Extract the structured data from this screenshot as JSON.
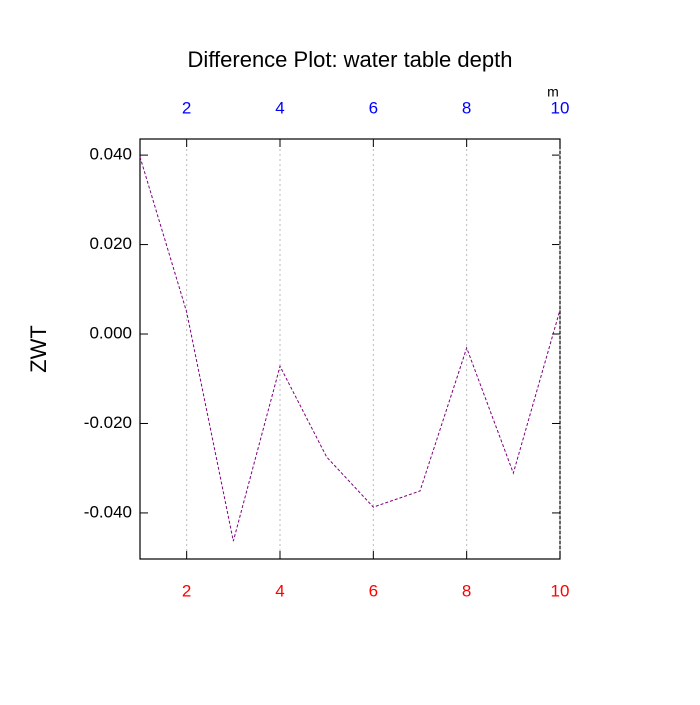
{
  "chart_data": {
    "type": "line",
    "title": "Difference Plot: water table depth",
    "ylabel": "ZWT",
    "x": [
      1,
      2,
      3,
      4,
      5,
      6,
      7,
      8,
      9,
      10
    ],
    "series": [
      {
        "color": "#800080",
        "values": [
          0.0396,
          0.0049,
          -0.0463,
          -0.0072,
          -0.0275,
          -0.0387,
          -0.0351,
          -0.0031,
          -0.0311,
          0.0054
        ]
      }
    ],
    "xlim": [
      1,
      10
    ],
    "ylim": [
      -0.0503,
      0.0436
    ],
    "xticks": [
      2,
      4,
      6,
      8,
      10
    ],
    "xtick_color": "#ff0000",
    "top_axis": {
      "label": "m",
      "ticks": [
        2,
        4,
        6,
        8,
        10
      ],
      "color": "#0000ff"
    },
    "yticks": [
      {
        "value": 0.04,
        "label": "0.040"
      },
      {
        "value": 0.02,
        "label": "0.020"
      },
      {
        "value": 0,
        "label": "0.000"
      },
      {
        "value": -0.02,
        "label": "-0.020"
      },
      {
        "value": -0.04,
        "label": "-0.040"
      }
    ],
    "grid": "x"
  }
}
